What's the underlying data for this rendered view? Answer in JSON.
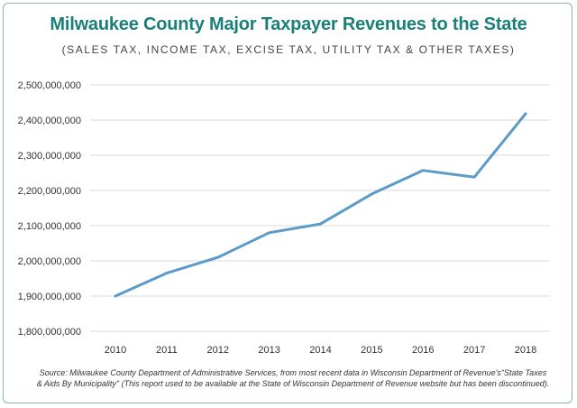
{
  "colors": {
    "title": "#1a7f7a",
    "line": "#5b9bc9",
    "grid": "#d9d9d9",
    "border": "#8fb3ad",
    "text": "#333333"
  },
  "chart_data": {
    "type": "line",
    "title": "Milwaukee County Major Taxpayer Revenues to the State",
    "subtitle": "(SALES TAX, INCOME TAX, EXCISE TAX, UTILITY TAX & OTHER TAXES)",
    "xlabel": "",
    "ylabel": "",
    "categories": [
      "2010",
      "2011",
      "2012",
      "2013",
      "2014",
      "2015",
      "2016",
      "2017",
      "2018"
    ],
    "series": [
      {
        "values": [
          1900000000,
          1965000000,
          2010000000,
          2080000000,
          2105000000,
          2190000000,
          2257000000,
          2238000000,
          2418000000
        ]
      }
    ],
    "ylim": [
      1800000000,
      2500000000
    ],
    "yticks": [
      1800000000,
      1900000000,
      2000000000,
      2100000000,
      2200000000,
      2300000000,
      2400000000,
      2500000000
    ],
    "ytick_labels": [
      "1,800,000,000",
      "1,900,000,000",
      "2,000,000,000",
      "2,100,000,000",
      "2,200,000,000",
      "2,300,000,000",
      "2,400,000,000",
      "2,500,000,000"
    ],
    "grid": true,
    "legend": "none"
  },
  "source_note": "Source: Milwaukee County Department of Administrative Services, from most recent data in Wisconsin Department of Revenue's\"State Taxes & Aids By Municipality\" (This report used to be available at the State of Wisconsin Department of Revenue website but has been discontinued)."
}
